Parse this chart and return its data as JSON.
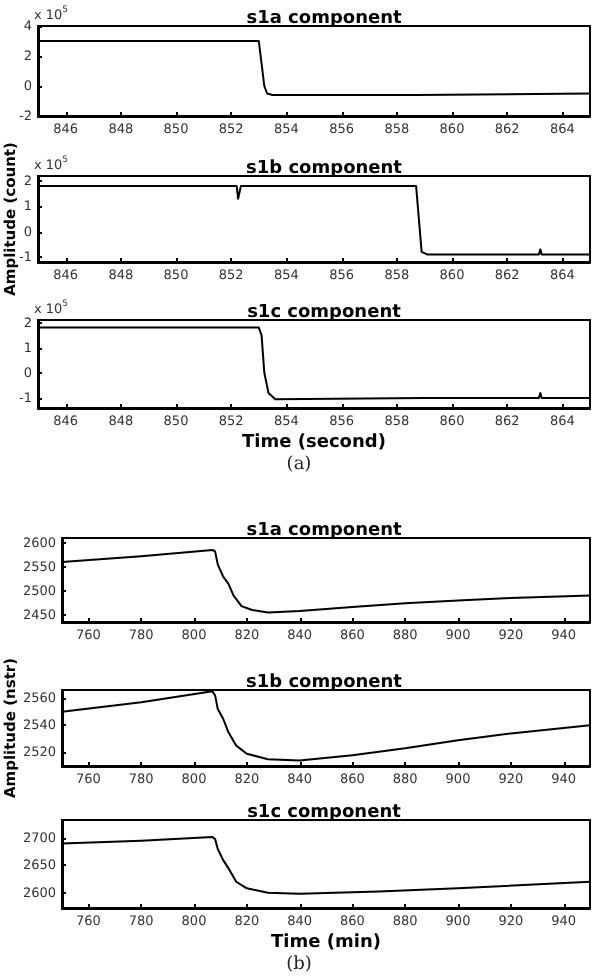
{
  "chart_data": [
    {
      "type": "line",
      "title": "s1a component",
      "annotations": [
        "x 10$^{5}$"
      ],
      "xlim": [
        845,
        865
      ],
      "xticks": [
        846,
        848,
        850,
        852,
        854,
        856,
        858,
        860,
        862,
        864
      ],
      "ylim": [
        -2,
        4
      ],
      "yticks": [
        -2,
        0,
        2,
        4
      ],
      "grid": false,
      "marker": "none",
      "line_style": "solid",
      "series": [
        {
          "color": "#000000",
          "x": [
            845,
            853,
            853.1,
            853.2,
            853.3,
            853.5,
            858.7,
            865
          ],
          "values": [
            3,
            3,
            1.5,
            0,
            -0.5,
            -0.6,
            -0.6,
            -0.5
          ]
        }
      ]
    },
    {
      "type": "line",
      "title": "s1b component",
      "ylabel": "Amplitude (count)",
      "annotations": [
        "x 10$^{5}$"
      ],
      "xlim": [
        845,
        865
      ],
      "xticks": [
        846,
        848,
        850,
        852,
        854,
        856,
        858,
        860,
        862,
        864
      ],
      "ylim": [
        -1.2,
        2.2
      ],
      "yticks": [
        -1,
        0,
        1,
        2
      ],
      "grid": false,
      "marker": "none",
      "line_style": "solid",
      "series": [
        {
          "color": "#000000",
          "x": [
            845,
            852.2,
            852.25,
            852.3,
            852.35,
            858.7,
            858.8,
            858.9,
            859.1,
            863.15,
            863.2,
            863.25,
            865
          ],
          "values": [
            1.8,
            1.8,
            1.3,
            1.3,
            1.8,
            1.8,
            0.5,
            -0.8,
            -0.9,
            -0.9,
            -0.7,
            -0.9,
            -0.9
          ]
        }
      ]
    },
    {
      "type": "line",
      "title": "s1c component",
      "xlabel": "Time (second)",
      "annotations": [
        "x 10$^{5}$",
        "(a)"
      ],
      "xlim": [
        845,
        865
      ],
      "xticks": [
        846,
        848,
        850,
        852,
        854,
        856,
        858,
        860,
        862,
        864
      ],
      "ylim": [
        -1.4,
        2.1
      ],
      "yticks": [
        -1,
        0,
        1,
        2
      ],
      "grid": false,
      "marker": "none",
      "line_style": "solid",
      "series": [
        {
          "color": "#000000",
          "x": [
            845,
            853,
            853.1,
            853.2,
            853.35,
            853.6,
            859,
            863.15,
            863.2,
            863.25,
            865
          ],
          "values": [
            1.8,
            1.8,
            1.5,
            0,
            -0.8,
            -1.05,
            -1.0,
            -1.0,
            -0.8,
            -1.0,
            -1.0
          ]
        }
      ]
    },
    {
      "type": "line",
      "title": "s1a component",
      "xlim": [
        750,
        950
      ],
      "xticks": [
        760,
        780,
        800,
        820,
        840,
        860,
        880,
        900,
        920,
        940
      ],
      "ylim": [
        2435,
        2610
      ],
      "yticks": [
        2450,
        2500,
        2550,
        2600
      ],
      "grid": false,
      "marker": "none",
      "line_style": "solid",
      "series": [
        {
          "color": "#000000",
          "x": [
            750,
            780,
            807,
            808,
            809,
            811,
            813,
            815,
            818,
            822,
            828,
            840,
            860,
            880,
            900,
            920,
            950
          ],
          "values": [
            2560,
            2572,
            2585,
            2582,
            2555,
            2530,
            2515,
            2490,
            2468,
            2460,
            2455,
            2458,
            2466,
            2474,
            2480,
            2485,
            2490
          ]
        }
      ]
    },
    {
      "type": "line",
      "title": "s1b component",
      "ylabel": "Amplitude (nstr)",
      "xlim": [
        750,
        950
      ],
      "xticks": [
        760,
        780,
        800,
        820,
        840,
        860,
        880,
        900,
        920,
        940
      ],
      "ylim": [
        2510,
        2566
      ],
      "yticks": [
        2520,
        2540,
        2560
      ],
      "grid": false,
      "marker": "none",
      "line_style": "solid",
      "series": [
        {
          "color": "#000000",
          "x": [
            750,
            780,
            807,
            808,
            809,
            811,
            813,
            816,
            820,
            828,
            840,
            860,
            880,
            900,
            920,
            950
          ],
          "values": [
            2550,
            2557,
            2565,
            2562,
            2552,
            2545,
            2535,
            2525,
            2519,
            2515,
            2514,
            2518,
            2523,
            2529,
            2534,
            2540
          ]
        }
      ]
    },
    {
      "type": "line",
      "title": "s1c component",
      "xlabel": "Time (min)",
      "annotations": [
        "(b)"
      ],
      "xlim": [
        750,
        950
      ],
      "xticks": [
        760,
        780,
        800,
        820,
        840,
        860,
        880,
        900,
        920,
        940
      ],
      "ylim": [
        2572,
        2733
      ],
      "yticks": [
        2600,
        2650,
        2700
      ],
      "grid": false,
      "marker": "none",
      "line_style": "solid",
      "series": [
        {
          "color": "#000000",
          "x": [
            750,
            780,
            807,
            808,
            809,
            811,
            813,
            816,
            820,
            828,
            840,
            870,
            900,
            950
          ],
          "values": [
            2690,
            2695,
            2702,
            2698,
            2680,
            2660,
            2645,
            2620,
            2608,
            2600,
            2598,
            2602,
            2608,
            2620
          ]
        }
      ]
    }
  ]
}
